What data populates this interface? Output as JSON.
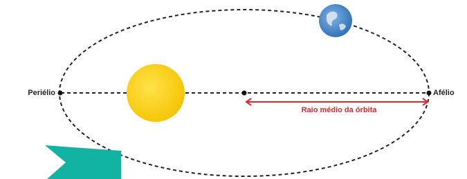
{
  "labels": {
    "perihelion": "Periélio",
    "aphelion": "Afélio",
    "mean_radius": "Raio médio da órbita"
  }
}
